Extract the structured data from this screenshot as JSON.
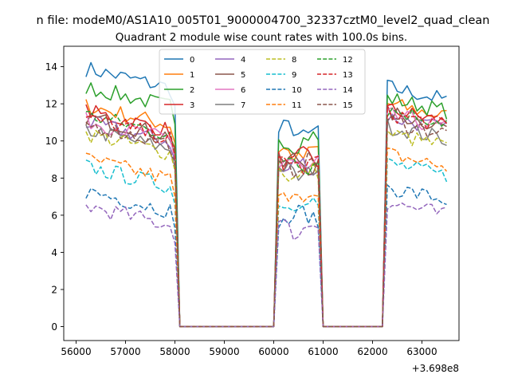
{
  "figure": {
    "suptitle": "n file: modeM0/AS1A10_005T01_9000004700_32337cztM0_level2_quad_clean"
  },
  "chart_data": {
    "type": "line",
    "title": "Quadrant 2 module wise count rates with 100.0s bins.",
    "xlabel": "",
    "ylabel": "",
    "x_offset_label": "+3.698e8",
    "xlim": [
      55750,
      63750
    ],
    "ylim": [
      -0.75,
      15.1
    ],
    "grid": false,
    "legend_placement": "top-center",
    "x_ticks": [
      {
        "value": 56000,
        "label": "56000"
      },
      {
        "value": 57000,
        "label": "57000"
      },
      {
        "value": 58000,
        "label": "58000"
      },
      {
        "value": 59000,
        "label": "59000"
      },
      {
        "value": 60000,
        "label": "60000"
      },
      {
        "value": 61000,
        "label": "61000"
      },
      {
        "value": 62000,
        "label": "62000"
      },
      {
        "value": 63000,
        "label": "63000"
      }
    ],
    "y_ticks": [
      {
        "value": 0,
        "label": "0"
      },
      {
        "value": 2,
        "label": "2"
      },
      {
        "value": 4,
        "label": "4"
      },
      {
        "value": 6,
        "label": "6"
      },
      {
        "value": 8,
        "label": "8"
      },
      {
        "value": 10,
        "label": "10"
      },
      {
        "value": 12,
        "label": "12"
      },
      {
        "value": 14,
        "label": "14"
      }
    ],
    "segments": [
      {
        "start": 56200,
        "end": 58000
      },
      {
        "start": 60100,
        "end": 60900
      },
      {
        "start": 62300,
        "end": 63500
      }
    ],
    "gap_x": [
      58100,
      58500,
      59000,
      59500,
      60000,
      61000,
      61500,
      62000
    ],
    "series": [
      {
        "name": "0",
        "color": "#1f77b4",
        "dash": "solid",
        "levels": [
          13.2,
          10.5,
          12.5
        ]
      },
      {
        "name": "1",
        "color": "#ff7f0e",
        "dash": "solid",
        "levels": [
          11.2,
          9.3,
          11.6
        ]
      },
      {
        "name": "2",
        "color": "#2ca02c",
        "dash": "solid",
        "levels": [
          12.2,
          10.0,
          11.9
        ]
      },
      {
        "name": "3",
        "color": "#d62728",
        "dash": "solid",
        "levels": [
          10.9,
          9.0,
          11.3
        ]
      },
      {
        "name": "4",
        "color": "#9467bd",
        "dash": "solid",
        "levels": [
          10.3,
          8.6,
          10.9
        ]
      },
      {
        "name": "5",
        "color": "#8c564b",
        "dash": "solid",
        "levels": [
          10.6,
          8.8,
          11.1
        ]
      },
      {
        "name": "6",
        "color": "#e377c2",
        "dash": "solid",
        "levels": [
          10.4,
          8.7,
          11.0
        ]
      },
      {
        "name": "7",
        "color": "#7f7f7f",
        "dash": "solid",
        "levels": [
          9.9,
          8.3,
          10.4
        ]
      },
      {
        "name": "8",
        "color": "#bcbd22",
        "dash": "dashed",
        "levels": [
          9.7,
          8.2,
          10.0
        ]
      },
      {
        "name": "9",
        "color": "#17becf",
        "dash": "dashed",
        "levels": [
          7.9,
          6.7,
          8.4
        ]
      },
      {
        "name": "10",
        "color": "#1f77b4",
        "dash": "dashed",
        "levels": [
          6.6,
          5.9,
          7.1
        ]
      },
      {
        "name": "11",
        "color": "#ff7f0e",
        "dash": "dashed",
        "levels": [
          8.3,
          7.1,
          8.9
        ]
      },
      {
        "name": "12",
        "color": "#2ca02c",
        "dash": "dashed",
        "levels": [
          10.7,
          8.9,
          11.3
        ]
      },
      {
        "name": "13",
        "color": "#d62728",
        "dash": "dashed",
        "levels": [
          10.5,
          8.8,
          11.1
        ]
      },
      {
        "name": "14",
        "color": "#9467bd",
        "dash": "dashed",
        "levels": [
          5.8,
          5.3,
          6.3
        ]
      },
      {
        "name": "15",
        "color": "#8c564b",
        "dash": "dashed",
        "levels": [
          10.2,
          8.7,
          10.7
        ]
      }
    ]
  }
}
